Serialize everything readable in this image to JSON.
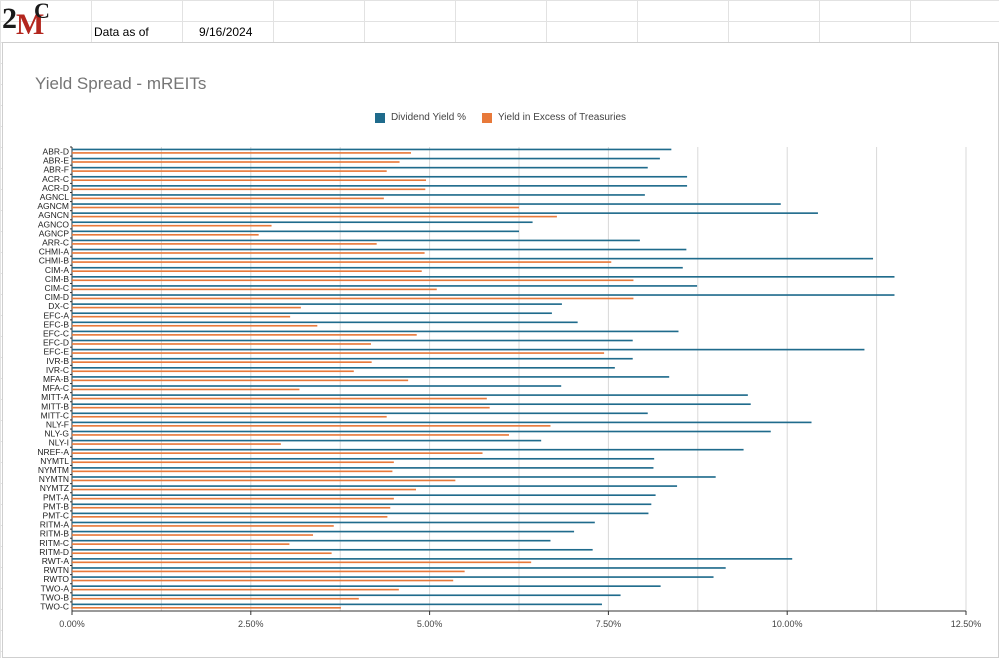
{
  "header": {
    "as_of_label": "Data as of",
    "as_of_date": "9/16/2024"
  },
  "logo": {
    "mark_2": "2",
    "mark_m": "M",
    "mark_c": "C"
  },
  "colors": {
    "dividend": "#1f6b8c",
    "excess": "#e8793a",
    "grid": "#d9d9d9"
  },
  "chart_data": {
    "type": "bar",
    "orientation": "horizontal",
    "title": "Yield Spread - mREITs",
    "legend_position": "top",
    "xlim": [
      0,
      12.5
    ],
    "x_ticks": [
      "0.00%",
      "2.50%",
      "5.00%",
      "7.50%",
      "10.00%",
      "12.50%"
    ],
    "categories": [
      "ABR-D",
      "ABR-E",
      "ABR-F",
      "ACR-C",
      "ACR-D",
      "AGNCL",
      "AGNCM",
      "AGNCN",
      "AGNCO",
      "AGNCP",
      "ARR-C",
      "CHMI-A",
      "CHMI-B",
      "CIM-A",
      "CIM-B",
      "CIM-C",
      "CIM-D",
      "DX-C",
      "EFC-A",
      "EFC-B",
      "EFC-C",
      "EFC-D",
      "EFC-E",
      "IVR-B",
      "IVR-C",
      "MFA-B",
      "MFA-C",
      "MITT-A",
      "MITT-B",
      "MITT-C",
      "NLY-F",
      "NLY-G",
      "NLY-I",
      "NREF-A",
      "NYMTL",
      "NYMTM",
      "NYMTN",
      "NYMTZ",
      "PMT-A",
      "PMT-B",
      "PMT-C",
      "RITM-A",
      "RITM-B",
      "RITM-C",
      "RITM-D",
      "RWT-A",
      "RWTN",
      "RWTO",
      "TWO-A",
      "TWO-B",
      "TWO-C"
    ],
    "series": [
      {
        "name": "Dividend Yield %",
        "values": [
          8.38,
          8.22,
          8.05,
          8.6,
          8.6,
          8.01,
          9.91,
          10.43,
          6.44,
          6.25,
          7.94,
          8.59,
          11.2,
          8.54,
          11.5,
          8.74,
          11.5,
          6.85,
          6.71,
          7.07,
          8.48,
          7.84,
          11.08,
          7.84,
          7.59,
          8.35,
          6.84,
          9.45,
          9.49,
          8.05,
          10.34,
          9.77,
          6.56,
          9.39,
          8.14,
          8.13,
          9.0,
          8.46,
          8.16,
          8.1,
          8.06,
          7.31,
          7.02,
          6.69,
          7.28,
          10.07,
          9.14,
          8.97,
          8.23,
          7.67,
          7.41
        ]
      },
      {
        "name": "Yield in Excess of Treasuries",
        "values": [
          4.74,
          4.58,
          4.4,
          4.95,
          4.94,
          4.36,
          6.25,
          6.78,
          2.79,
          2.61,
          4.26,
          4.93,
          7.54,
          4.89,
          7.85,
          5.1,
          7.85,
          3.2,
          3.05,
          3.43,
          4.82,
          4.18,
          7.44,
          4.19,
          3.94,
          4.7,
          3.18,
          5.8,
          5.84,
          4.4,
          6.69,
          6.11,
          2.92,
          5.74,
          4.5,
          4.48,
          5.36,
          4.81,
          4.5,
          4.45,
          4.41,
          3.66,
          3.37,
          3.04,
          3.63,
          6.42,
          5.49,
          5.33,
          4.57,
          4.01,
          3.76
        ]
      }
    ]
  }
}
